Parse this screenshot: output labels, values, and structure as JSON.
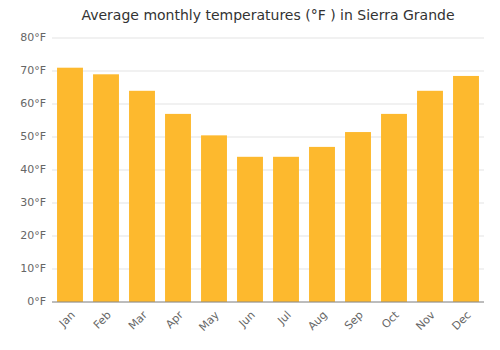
{
  "chart_data": {
    "type": "bar",
    "title": "Average monthly temperatures (°F ) in Sierra Grande",
    "categories": [
      "Jan",
      "Feb",
      "Mar",
      "Apr",
      "May",
      "Jun",
      "Jul",
      "Aug",
      "Sep",
      "Oct",
      "Nov",
      "Dec"
    ],
    "values": [
      71.0,
      69.0,
      64.0,
      57.0,
      50.5,
      44.0,
      44.0,
      47.0,
      51.5,
      57.0,
      64.0,
      68.5
    ],
    "color": "#FDB92E",
    "ylim": [
      0,
      80
    ],
    "yticks": [
      {
        "value": 0,
        "label": "0°F"
      },
      {
        "value": 10,
        "label": "10°F"
      },
      {
        "value": 20,
        "label": "20°F"
      },
      {
        "value": 30,
        "label": "30°F"
      },
      {
        "value": 40,
        "label": "40°F"
      },
      {
        "value": 50,
        "label": "50°F"
      },
      {
        "value": 60,
        "label": "60°F"
      },
      {
        "value": 70,
        "label": "70°F"
      },
      {
        "value": 80,
        "label": "80°F"
      }
    ],
    "grid": true
  }
}
